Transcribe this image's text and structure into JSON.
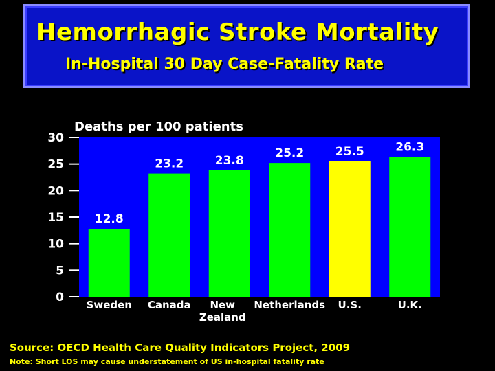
{
  "header": {
    "title": "Hemorrhagic Stroke Mortality",
    "subtitle": "In-Hospital 30 Day Case-Fatality Rate"
  },
  "chart_data": {
    "type": "bar",
    "ylabel": "Deaths per 100 patients",
    "xlabel": "",
    "ylim": [
      0,
      30
    ],
    "yticks": [
      "0",
      "5",
      "10",
      "15",
      "20",
      "25",
      "30"
    ],
    "categories": [
      "Sweden",
      "Canada",
      "New\nZealand",
      "Netherlands",
      "U.S.",
      "U.K."
    ],
    "values": [
      12.8,
      23.2,
      23.8,
      25.2,
      25.5,
      26.3
    ],
    "value_labels": [
      "12.8",
      "23.2",
      "23.8",
      "25.2",
      "25.5",
      "26.3"
    ],
    "bar_colors": [
      "#00ff00",
      "#00ff00",
      "#00ff00",
      "#00ff00",
      "#ffff00",
      "#00ff00"
    ],
    "plot_background": "#0000ff",
    "grid": false,
    "legend": "none"
  },
  "footer": {
    "source": "Source: OECD Health Care Quality Indicators Project, 2009",
    "note": "Note: Short LOS may cause understatement of US in-hospital fatality rate"
  }
}
